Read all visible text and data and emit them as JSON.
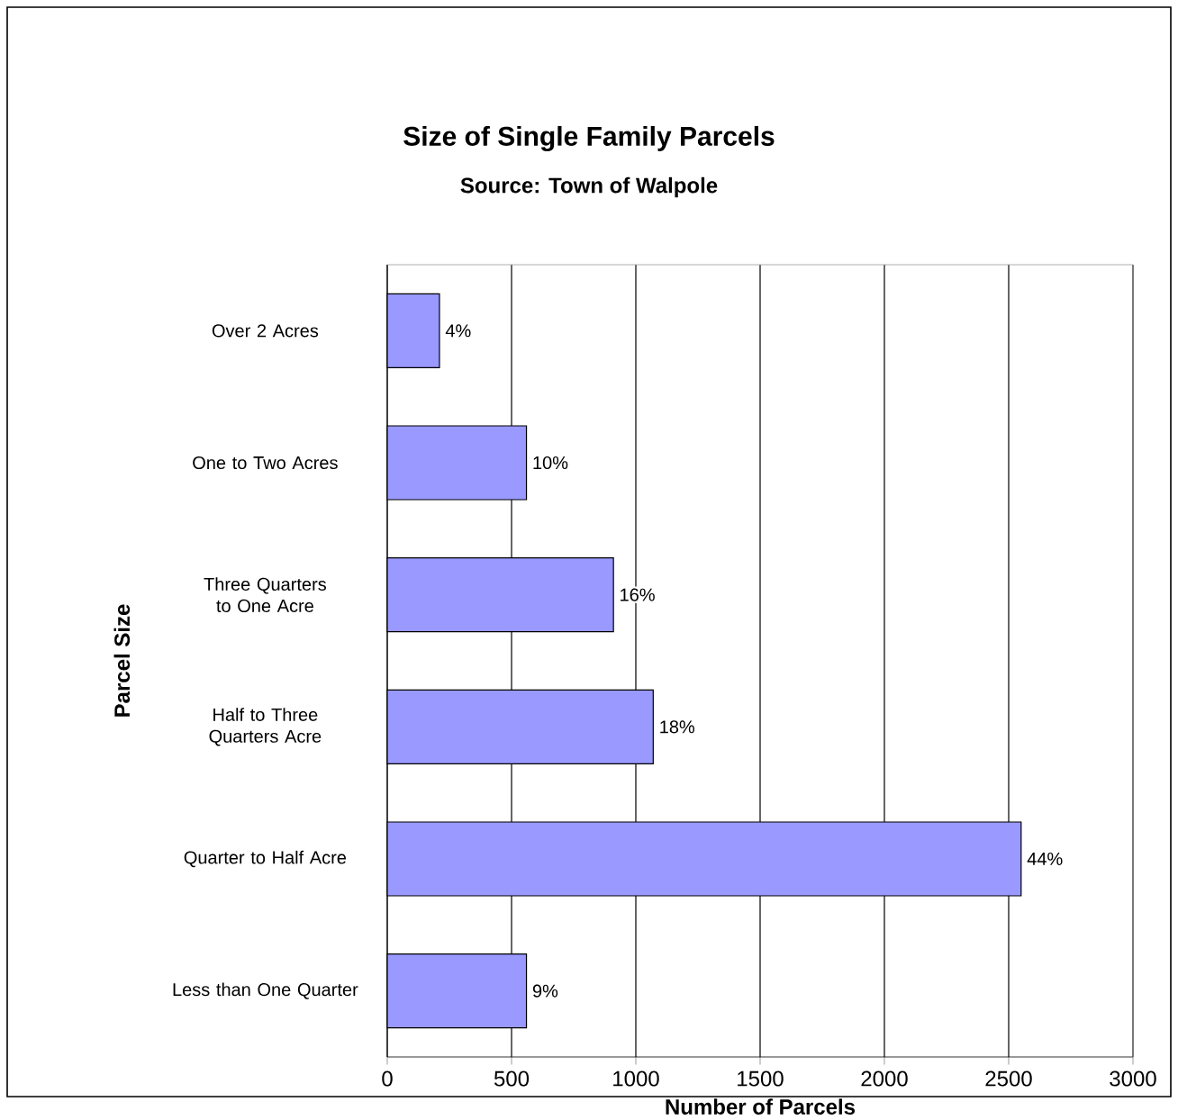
{
  "chart_data": {
    "type": "bar",
    "orientation": "horizontal",
    "title": "Size of Single Family Parcels",
    "subtitle": "Source: Town of Walpole",
    "xlabel": "Number of Parcels",
    "ylabel": "Parcel Size",
    "categories": [
      "Over 2 Acres",
      "One to Two Acres",
      "Three Quarters to One Acre",
      "Half to Three Quarters Acre",
      "Quarter to Half Acre",
      "Less than One Quarter"
    ],
    "values": [
      210,
      560,
      910,
      1070,
      2550,
      560
    ],
    "annotations": [
      {
        "text": "4%",
        "x": 210,
        "y": "Over 2 Acres"
      },
      {
        "text": "10%",
        "x": 560,
        "y": "One to Two Acres"
      },
      {
        "text": "16%",
        "x": 910,
        "y": "Three Quarters to One Acre"
      },
      {
        "text": "18%",
        "x": 1070,
        "y": "Half to Three Quarters Acre"
      },
      {
        "text": "44%",
        "x": 2550,
        "y": "Quarter to Half Acre"
      },
      {
        "text": "9%",
        "x": 560,
        "y": "Less than One Quarter"
      }
    ],
    "color": "#9999ff",
    "xlim": [
      0,
      3000
    ],
    "xticks": [
      0,
      500,
      1000,
      1500,
      2000,
      2500,
      3000
    ],
    "grid": "x"
  }
}
